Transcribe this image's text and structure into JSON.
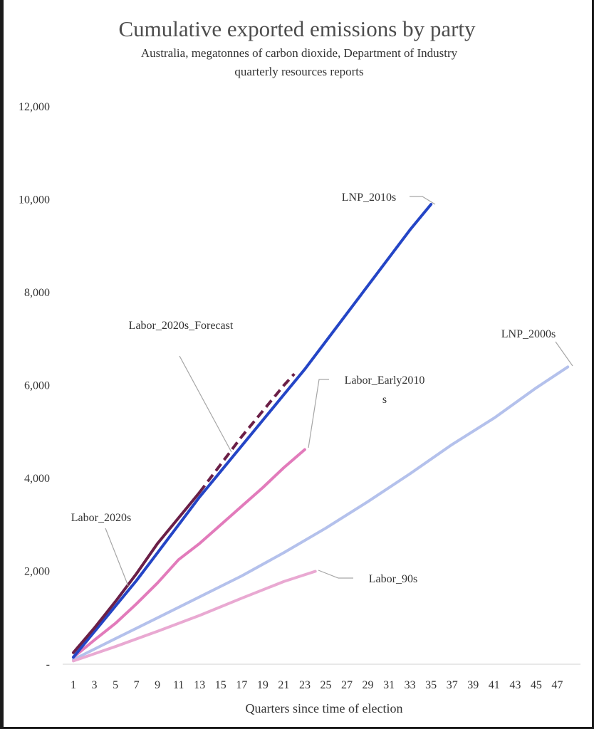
{
  "chart_data": {
    "type": "line",
    "title": "Cumulative exported emissions by party",
    "subtitle_lines": [
      "Australia, megatonnes of carbon dioxide, Department of Industry",
      "quarterly resources reports"
    ],
    "xlabel": "Quarters since time of election",
    "ylabel": "",
    "xlim": [
      1,
      48
    ],
    "ylim": [
      0,
      12000
    ],
    "x_ticks": [
      1,
      3,
      5,
      7,
      9,
      11,
      13,
      15,
      17,
      19,
      21,
      23,
      25,
      27,
      29,
      31,
      33,
      35,
      37,
      39,
      41,
      43,
      45,
      47
    ],
    "y_ticks": [
      {
        "value": 0,
        "label": "-"
      },
      {
        "value": 2000,
        "label": "2,000"
      },
      {
        "value": 4000,
        "label": "4,000"
      },
      {
        "value": 6000,
        "label": "6,000"
      },
      {
        "value": 8000,
        "label": "8,000"
      },
      {
        "value": 10000,
        "label": "10,000"
      },
      {
        "value": 12000,
        "label": "12,000"
      }
    ],
    "grid": false,
    "legend": "none",
    "series": [
      {
        "name": "LNP_2000s",
        "color": "#b4c1ec",
        "dashed": false,
        "x": [
          1,
          5,
          9,
          13,
          17,
          21,
          25,
          29,
          33,
          37,
          41,
          45,
          48
        ],
        "values": [
          100,
          550,
          1000,
          1450,
          1900,
          2400,
          2930,
          3500,
          4100,
          4730,
          5300,
          5950,
          6400
        ],
        "label_text": "LNP_2000s"
      },
      {
        "name": "Labor_90s",
        "color": "#e9a9d2",
        "dashed": false,
        "x": [
          1,
          5,
          9,
          13,
          17,
          21,
          24
        ],
        "values": [
          70,
          380,
          710,
          1050,
          1420,
          1780,
          2000
        ],
        "label_text": "Labor_90s"
      },
      {
        "name": "Labor_Early2010s",
        "color": "#e27bbb",
        "dashed": false,
        "x": [
          1,
          3,
          5,
          7,
          9,
          11,
          13,
          15,
          17,
          19,
          21,
          23
        ],
        "values": [
          150,
          520,
          880,
          1300,
          1750,
          2250,
          2600,
          3000,
          3400,
          3800,
          4230,
          4620
        ],
        "label_text": [
          "Labor_Early2010",
          "s"
        ]
      },
      {
        "name": "LNP_2010s",
        "color": "#2445c6",
        "dashed": false,
        "x": [
          1,
          3,
          5,
          7,
          9,
          11,
          13,
          15,
          17,
          19,
          21,
          23,
          25,
          27,
          29,
          31,
          33,
          35
        ],
        "values": [
          150,
          700,
          1250,
          1800,
          2400,
          3000,
          3600,
          4150,
          4700,
          5250,
          5800,
          6350,
          6950,
          7550,
          8150,
          8750,
          9350,
          9900
        ],
        "label_text": "LNP_2010s"
      },
      {
        "name": "Labor_2020s_Forecast",
        "color": "#6b1f47",
        "dashed": true,
        "x": [
          13,
          15,
          17,
          19,
          21,
          22
        ],
        "values": [
          3700,
          4300,
          4900,
          5450,
          6000,
          6250
        ],
        "label_text": "Labor_2020s_Forecast"
      },
      {
        "name": "Labor_2020s",
        "color": "#6b1f47",
        "dashed": false,
        "x": [
          1,
          3,
          5,
          7,
          9,
          11,
          13
        ],
        "values": [
          250,
          780,
          1350,
          1950,
          2600,
          3150,
          3700
        ],
        "label_text": "Labor_2020s"
      }
    ]
  }
}
